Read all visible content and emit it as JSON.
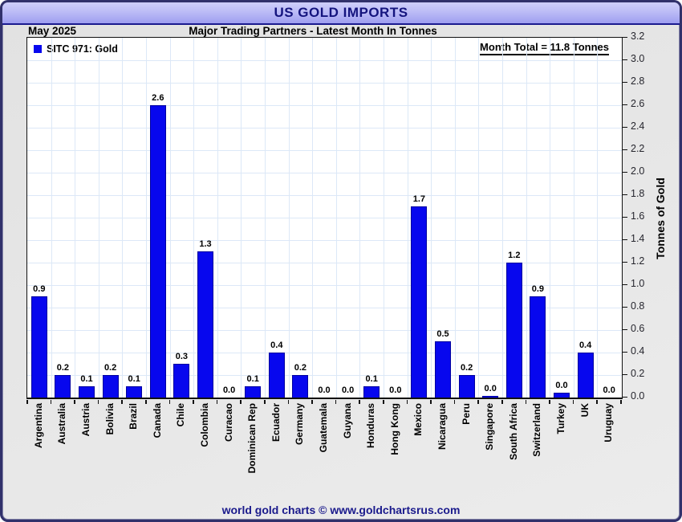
{
  "window": {
    "title": "US GOLD IMPORTS"
  },
  "subheader": {
    "period": "May 2025",
    "subtitle": "Major Trading Partners - Latest Month In Tonnes"
  },
  "legend": {
    "label": "SITC 971: Gold"
  },
  "annotation": {
    "month_total_label": "Month Total = 11.8 Tonnes"
  },
  "footer": {
    "credit": "world gold charts © www.goldchartsrus.com"
  },
  "colors": {
    "bar": "#0707ee",
    "bar_edge": "#0000a0",
    "grid_line": "#dce8f7",
    "title_navy": "#14147e",
    "footer_navy": "#1a1a8c",
    "titlebar_gradient_top": "#cfcffb",
    "titlebar_gradient_bottom": "#9e9ef0"
  },
  "chart_data": {
    "type": "bar",
    "title": "US GOLD IMPORTS",
    "subtitle": "Major Trading Partners - Latest Month In Tonnes",
    "period": "May 2025",
    "series_name": "SITC 971: Gold",
    "categories": [
      "Argentina",
      "Australia",
      "Austria",
      "Bolivia",
      "Brazil",
      "Canada",
      "Chile",
      "Colombia",
      "Curacao",
      "Dominican Rep",
      "Ecuador",
      "Germany",
      "Guatemala",
      "Guyana",
      "Honduras",
      "Hong Kong",
      "Mexico",
      "Nicaragua",
      "Peru",
      "Singapore",
      "South Africa",
      "Switzerland",
      "Turkey",
      "UK",
      "Uruguay"
    ],
    "values": [
      0.9,
      0.2,
      0.1,
      0.2,
      0.1,
      2.6,
      0.3,
      1.3,
      0.0,
      0.1,
      0.4,
      0.2,
      0.0,
      0.0,
      0.1,
      0.0,
      1.7,
      0.5,
      0.2,
      0.0,
      1.2,
      0.9,
      0.0,
      0.4,
      0.0
    ],
    "value_labels": [
      "0.9",
      "0.2",
      "0.1",
      "0.2",
      "0.1",
      "2.6",
      "0.3",
      "1.3",
      "0.0",
      "0.1",
      "0.4",
      "0.2",
      "0.0",
      "0.0",
      "0.1",
      "0.0",
      "1.7",
      "0.5",
      "0.2",
      "0.0",
      "1.2",
      "0.9",
      "0.0",
      "0.4",
      "0.0"
    ],
    "bar_draw_values": [
      0.9,
      0.2,
      0.1,
      0.2,
      0.1,
      2.6,
      0.3,
      1.3,
      0,
      0.1,
      0.4,
      0.2,
      0,
      0,
      0.1,
      0,
      1.7,
      0.5,
      0.2,
      0.015,
      1.2,
      0.9,
      0.045,
      0.4,
      0
    ],
    "ylabel": "Tonnes of Gold",
    "ylim": [
      0.0,
      3.2
    ],
    "ytick_step": 0.2,
    "yaxis_side": "right",
    "legend_position": "top-left",
    "grid": true,
    "month_total_tonnes": 11.8
  }
}
